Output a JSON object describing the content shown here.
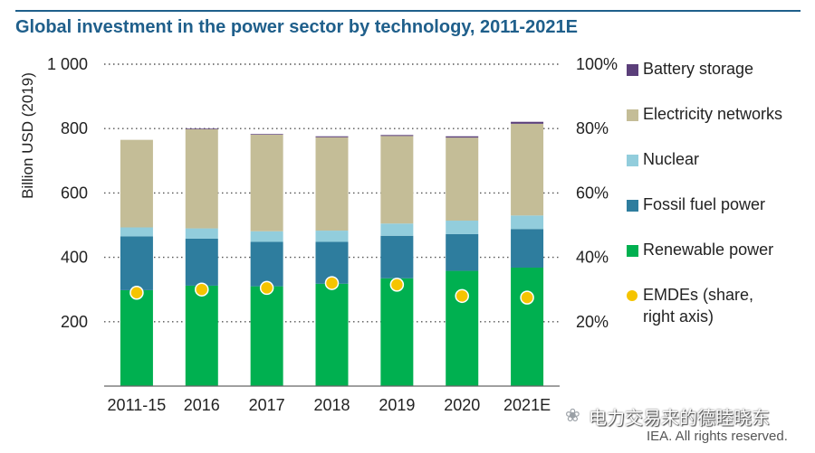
{
  "chart_data": {
    "type": "bar",
    "stacked": true,
    "title": "Global investment in the power sector by technology, 2011-2021E",
    "ylabel": "Billion USD (2019)",
    "ylim": [
      0,
      1000
    ],
    "yticks": [
      200,
      400,
      600,
      800,
      1000
    ],
    "ytick_labels": [
      "200",
      "400",
      "600",
      "800",
      "1 000"
    ],
    "y2lim": [
      0,
      100
    ],
    "y2ticks": [
      20,
      40,
      60,
      80,
      100
    ],
    "y2tick_labels": [
      "20%",
      "40%",
      "60%",
      "80%",
      "100%"
    ],
    "categories": [
      "2011-15",
      "2016",
      "2017",
      "2018",
      "2019",
      "2020",
      "2021E"
    ],
    "series": [
      {
        "name": "Renewable power",
        "color": "#00b050",
        "values": [
          298,
          312,
          310,
          318,
          335,
          358,
          368
        ]
      },
      {
        "name": "Fossil fuel power",
        "color": "#2e7d9e",
        "values": [
          167,
          146,
          138,
          130,
          132,
          114,
          120
        ]
      },
      {
        "name": "Nuclear",
        "color": "#92cddc",
        "values": [
          28,
          32,
          33,
          35,
          38,
          42,
          42
        ]
      },
      {
        "name": "Electricity networks",
        "color": "#c4bd97",
        "values": [
          272,
          308,
          300,
          290,
          272,
          258,
          285
        ]
      },
      {
        "name": "Battery storage",
        "color": "#5b3f7a",
        "values": [
          0,
          2,
          2,
          3,
          3,
          4,
          6
        ]
      }
    ],
    "line_series": {
      "name": "EMDEs (share, right axis)",
      "color": "#f5c400",
      "axis": "right",
      "values": [
        29,
        30,
        30.5,
        32,
        31.5,
        28,
        27.5
      ]
    },
    "grid": "dotted horizontal",
    "legend": "right"
  },
  "watermark": "电力交易来的德睦晓东",
  "watermark_icon": "❀",
  "source": "IEA. All rights reserved."
}
